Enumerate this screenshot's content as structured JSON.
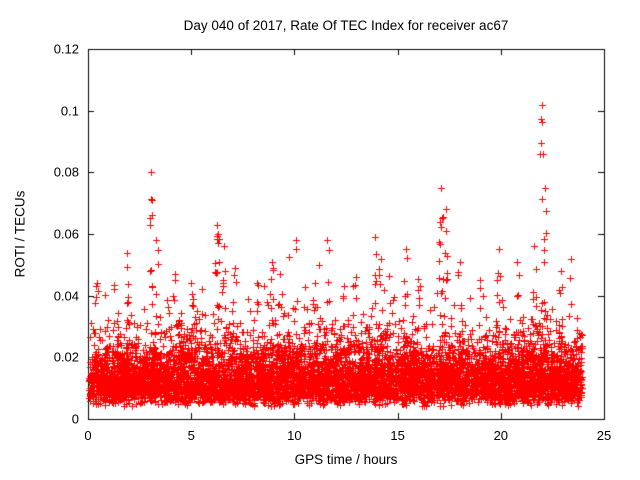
{
  "chart_data": {
    "type": "scatter",
    "title": "Day 040 of 2017, Rate Of TEC Index for receiver ac67",
    "xlabel": "GPS time / hours",
    "ylabel": "ROTI / TECUs",
    "xlim": [
      0,
      25
    ],
    "ylim": [
      0,
      0.12
    ],
    "xtick_values": [
      0,
      5,
      10,
      15,
      20,
      25
    ],
    "xtick_labels": [
      "0",
      "5",
      "10",
      "15",
      "20",
      "25"
    ],
    "ytick_values": [
      0,
      0.02,
      0.04,
      0.06,
      0.08,
      0.1,
      0.12
    ],
    "ytick_labels": [
      "0",
      "0.02",
      "0.04",
      "0.06",
      "0.08",
      "0.1",
      "0.12"
    ],
    "grid": "off",
    "legend": "none",
    "marker": "plus",
    "marker_color": "#ff0000",
    "background": "#ffffff",
    "data_x_range": [
      0.05,
      23.95
    ],
    "baseline_band": {
      "n_points": 7000,
      "y_min": 0.004,
      "y_dense_max": 0.03,
      "y_typical_max": 0.045,
      "note": "dense red noise band of ROTI values covering 0 to ~24 h, most points between 0.005 and 0.035 TECUs"
    },
    "spikes": [
      [
        0.4,
        0.043,
        4
      ],
      [
        1.9,
        0.054,
        6
      ],
      [
        3.05,
        0.08,
        10
      ],
      [
        3.3,
        0.058,
        4
      ],
      [
        4.2,
        0.047,
        4
      ],
      [
        5.0,
        0.044,
        3
      ],
      [
        6.25,
        0.063,
        12
      ],
      [
        6.6,
        0.056,
        6
      ],
      [
        7.1,
        0.049,
        4
      ],
      [
        8.2,
        0.044,
        3
      ],
      [
        8.9,
        0.051,
        6
      ],
      [
        9.3,
        0.047,
        4
      ],
      [
        10.1,
        0.058,
        3
      ],
      [
        11.0,
        0.044,
        3
      ],
      [
        11.6,
        0.058,
        5
      ],
      [
        12.4,
        0.043,
        3
      ],
      [
        13.0,
        0.046,
        3
      ],
      [
        13.9,
        0.059,
        6
      ],
      [
        14.2,
        0.052,
        4
      ],
      [
        15.4,
        0.055,
        5
      ],
      [
        16.1,
        0.043,
        3
      ],
      [
        17.1,
        0.075,
        12
      ],
      [
        17.35,
        0.068,
        8
      ],
      [
        18.0,
        0.051,
        4
      ],
      [
        19.0,
        0.045,
        3
      ],
      [
        19.9,
        0.055,
        5
      ],
      [
        20.8,
        0.051,
        4
      ],
      [
        21.6,
        0.056,
        5
      ],
      [
        22.0,
        0.102,
        9
      ],
      [
        22.15,
        0.075,
        6
      ],
      [
        22.9,
        0.048,
        4
      ],
      [
        23.4,
        0.052,
        3
      ]
    ]
  }
}
